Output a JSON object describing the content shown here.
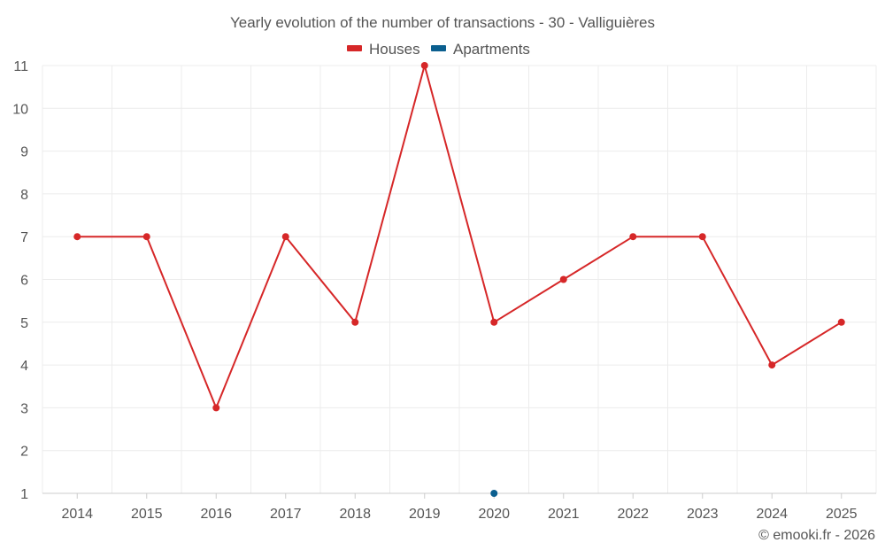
{
  "chart_data": {
    "type": "line",
    "title": "Yearly evolution of the number of transactions - 30 - Valliguières",
    "categories": [
      "2014",
      "2015",
      "2016",
      "2017",
      "2018",
      "2019",
      "2020",
      "2021",
      "2022",
      "2023",
      "2024",
      "2025"
    ],
    "series": [
      {
        "name": "Houses",
        "color": "#d62728",
        "values": [
          7,
          7,
          3,
          7,
          5,
          11,
          5,
          6,
          7,
          7,
          4,
          5
        ]
      },
      {
        "name": "Apartments",
        "color": "#0b5f8f",
        "values": [
          null,
          null,
          null,
          null,
          null,
          null,
          1,
          null,
          null,
          null,
          null,
          null
        ]
      }
    ],
    "ylim": [
      1,
      11
    ],
    "yticks": [
      "1",
      "2",
      "3",
      "4",
      "5",
      "6",
      "7",
      "8",
      "9",
      "10",
      "11"
    ],
    "xlabel": "",
    "ylabel": "",
    "grid": true,
    "legend": "top-center"
  },
  "credit": "© emooki.fr - 2026"
}
